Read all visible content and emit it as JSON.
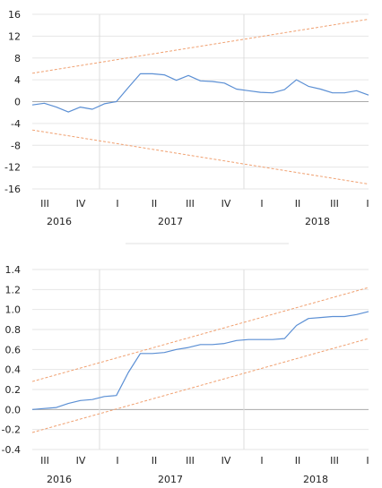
{
  "colors": {
    "series": "#5b8fd4",
    "bands": "#f0a070",
    "grid": "#e6e6e6",
    "zero": "#aaaaaa",
    "year_divider": "#dddddd",
    "separator": "#e0e0e0"
  },
  "chart_data": [
    {
      "type": "line",
      "ylim": [
        -16,
        16
      ],
      "ytick_labels": [
        "16",
        "12",
        "8",
        "4",
        "0",
        "-4",
        "-8",
        "-12",
        "-16"
      ],
      "quarter_labels": [
        "III",
        "IV",
        "I",
        "II",
        "III",
        "IV",
        "I",
        "II",
        "III",
        "I"
      ],
      "year_labels": [
        "2016",
        "2017",
        "2018"
      ],
      "grid": true,
      "series": [
        {
          "values": [
            -0.6,
            -0.3,
            -1.0,
            -1.9,
            -1.0,
            -1.4,
            -0.4,
            0.0,
            2.6,
            5.1,
            5.1,
            4.9,
            3.9,
            4.8,
            3.8,
            3.7,
            3.4,
            2.3,
            2.0,
            1.7,
            1.6,
            2.2,
            4.0,
            2.8,
            2.3,
            1.6,
            1.6,
            2.0,
            1.2
          ]
        }
      ],
      "bands": {
        "upper_start": 5.2,
        "upper_end": 15.1,
        "lower_start": -5.2,
        "lower_end": -15.1
      }
    },
    {
      "type": "line",
      "ylim": [
        -0.4,
        1.4
      ],
      "ytick_labels": [
        "1.4",
        "1.2",
        "1.0",
        "0.8",
        "0.6",
        "0.4",
        "0.2",
        "0.0",
        "-0.2",
        "-0.4"
      ],
      "quarter_labels": [
        "III",
        "IV",
        "I",
        "II",
        "III",
        "IV",
        "I",
        "II",
        "III",
        "I"
      ],
      "year_labels": [
        "2016",
        "2017",
        "2018"
      ],
      "grid": true,
      "series": [
        {
          "values": [
            0.0,
            0.01,
            0.02,
            0.06,
            0.09,
            0.1,
            0.13,
            0.14,
            0.37,
            0.56,
            0.56,
            0.57,
            0.6,
            0.62,
            0.65,
            0.65,
            0.66,
            0.69,
            0.7,
            0.7,
            0.7,
            0.71,
            0.84,
            0.91,
            0.92,
            0.93,
            0.93,
            0.95,
            0.98
          ]
        }
      ],
      "bands": {
        "upper_start": 0.28,
        "upper_end": 1.22,
        "lower_start": -0.23,
        "lower_end": 0.71
      }
    }
  ]
}
